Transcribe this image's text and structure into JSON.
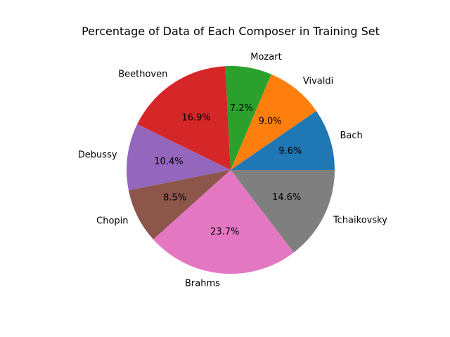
{
  "chart_data": {
    "type": "pie",
    "title": "Percentage of Data of Each Composer in Training Set",
    "categories": [
      "Bach",
      "Vivaldi",
      "Mozart",
      "Beethoven",
      "Debussy",
      "Chopin",
      "Brahms",
      "Tchaikovsky"
    ],
    "values": [
      9.6,
      9.0,
      7.2,
      16.9,
      10.4,
      8.5,
      23.7,
      14.6
    ],
    "value_labels": [
      "9.6%",
      "9.0%",
      "7.2%",
      "16.9%",
      "10.4%",
      "8.5%",
      "23.7%",
      "14.6%"
    ],
    "colors": [
      "#1f77b4",
      "#ff7f0e",
      "#2ca02c",
      "#d62728",
      "#9467bd",
      "#8c564b",
      "#e377c2",
      "#7f7f7f"
    ],
    "start_angle_deg": 0,
    "direction": "counterclockwise"
  }
}
